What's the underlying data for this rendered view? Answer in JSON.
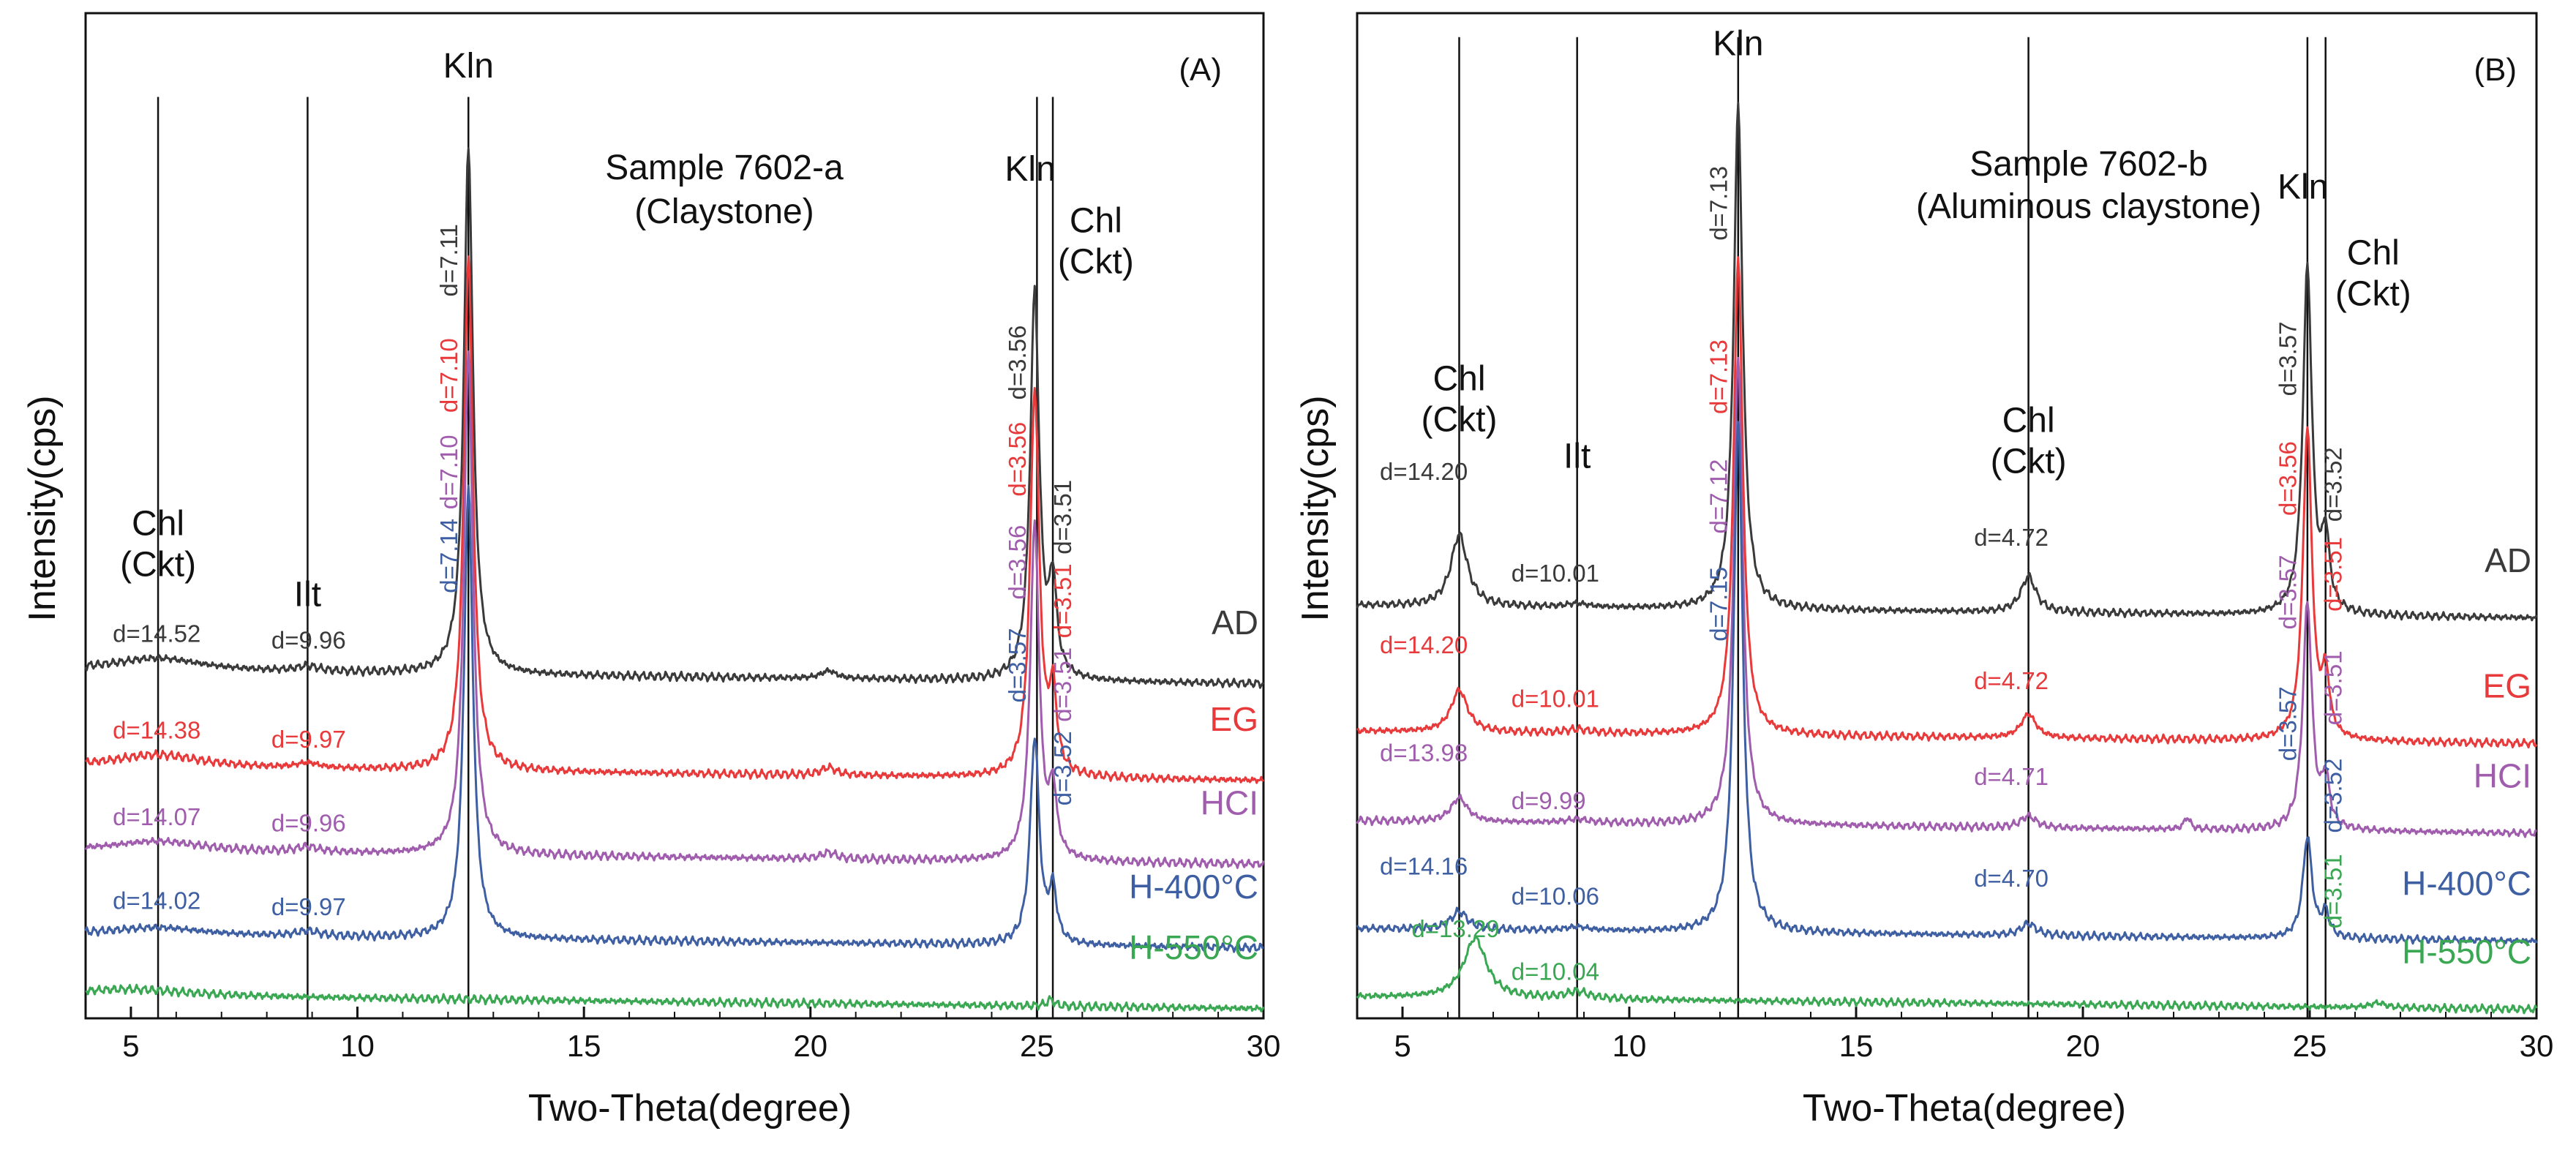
{
  "colors": {
    "AD": "#3a3a3a",
    "EG": "#e8393b",
    "HCl": "#a05dad",
    "H400": "#3f5fa3",
    "H550": "#3aa752"
  },
  "chart_data": [
    {
      "type": "line",
      "panel_label": "(A)",
      "title_line1": "Sample 7602-a",
      "title_line2": "(Claystone)",
      "xlabel": "Two-Theta(degree)",
      "ylabel": "Intensity(cps)",
      "xlim": [
        4,
        30
      ],
      "xticks": [
        5,
        10,
        15,
        20,
        25,
        30
      ],
      "xtick_labels": [
        "5",
        "10",
        "15",
        "20",
        "25",
        "30"
      ],
      "y_ticks_shown": false,
      "series": [
        {
          "name": "AD",
          "color_key": "AD",
          "baseline": 2.7,
          "peaks": [
            {
              "x": 5.6,
              "h": 0.1,
              "w": 1.2
            },
            {
              "x": 8.9,
              "h": 0.04,
              "w": 0.3
            },
            {
              "x": 12.45,
              "h": 4.1,
              "w": 0.12
            },
            {
              "x": 20.4,
              "h": 0.06,
              "w": 0.2
            },
            {
              "x": 24.95,
              "h": 3.0,
              "w": 0.12
            },
            {
              "x": 25.35,
              "h": 0.7,
              "w": 0.1
            }
          ]
        },
        {
          "name": "EG",
          "color_key": "EG",
          "baseline": 1.95,
          "peaks": [
            {
              "x": 5.6,
              "h": 0.1,
              "w": 1.2
            },
            {
              "x": 8.9,
              "h": 0.04,
              "w": 0.3
            },
            {
              "x": 12.45,
              "h": 4.0,
              "w": 0.12
            },
            {
              "x": 20.4,
              "h": 0.06,
              "w": 0.2
            },
            {
              "x": 24.95,
              "h": 3.0,
              "w": 0.12
            },
            {
              "x": 25.35,
              "h": 0.6,
              "w": 0.1
            }
          ]
        },
        {
          "name": "HCl",
          "color_key": "HCl",
          "baseline": 1.3,
          "peaks": [
            {
              "x": 5.6,
              "h": 0.08,
              "w": 1.2
            },
            {
              "x": 8.9,
              "h": 0.04,
              "w": 0.3
            },
            {
              "x": 12.45,
              "h": 3.9,
              "w": 0.12
            },
            {
              "x": 20.4,
              "h": 0.05,
              "w": 0.2
            },
            {
              "x": 24.95,
              "h": 2.6,
              "w": 0.12
            },
            {
              "x": 25.35,
              "h": 0.5,
              "w": 0.1
            }
          ]
        },
        {
          "name": "H-400°C",
          "color_key": "H400",
          "baseline": 0.65,
          "peaks": [
            {
              "x": 5.6,
              "h": 0.06,
              "w": 1.2
            },
            {
              "x": 8.9,
              "h": 0.04,
              "w": 0.3
            },
            {
              "x": 12.45,
              "h": 3.5,
              "w": 0.12
            },
            {
              "x": 24.95,
              "h": 1.6,
              "w": 0.12
            },
            {
              "x": 25.35,
              "h": 0.4,
              "w": 0.1
            }
          ]
        },
        {
          "name": "H-550°C",
          "color_key": "H550",
          "baseline": 0.18,
          "peaks": [
            {
              "x": 5.0,
              "h": 0.05,
              "w": 1.5
            },
            {
              "x": 25.3,
              "h": 0.05,
              "w": 0.1
            }
          ]
        }
      ],
      "series_labels": [
        "AD",
        "EG",
        "HCI",
        "H-400°C",
        "H-550°C"
      ],
      "reference_lines": [
        5.6,
        8.9,
        12.45,
        25.0,
        25.35
      ],
      "mineral_labels": [
        {
          "lines": [
            "Chl",
            "(Ckt)"
          ],
          "x": 5.6,
          "y": 3.75
        },
        {
          "lines": [
            "Ilt"
          ],
          "x": 8.9,
          "y": 3.2
        },
        {
          "lines": [
            "Kln"
          ],
          "x": 12.45,
          "y": 7.3
        },
        {
          "lines": [
            "Kln"
          ],
          "x": 24.85,
          "y": 6.5
        },
        {
          "lines": [
            "Chl",
            "(Ckt)"
          ],
          "x": 26.3,
          "y": 6.1
        }
      ],
      "d_labels": [
        {
          "text": "d=14.52",
          "x": 4.6,
          "y": 2.92,
          "color_key": "AD",
          "vertical": false
        },
        {
          "text": "d=9.96",
          "x": 8.1,
          "y": 2.87,
          "color_key": "AD",
          "vertical": false
        },
        {
          "text": "d=7.11",
          "x": 12.2,
          "y": 5.6,
          "color_key": "AD",
          "vertical": true
        },
        {
          "text": "d=3.56",
          "x": 24.75,
          "y": 4.8,
          "color_key": "AD",
          "vertical": true
        },
        {
          "text": "d=3.51",
          "x": 25.75,
          "y": 3.6,
          "color_key": "AD",
          "vertical": true
        },
        {
          "text": "d=14.38",
          "x": 4.6,
          "y": 2.17,
          "color_key": "EG",
          "vertical": false
        },
        {
          "text": "d=9.97",
          "x": 8.1,
          "y": 2.1,
          "color_key": "EG",
          "vertical": false
        },
        {
          "text": "d=7.10",
          "x": 12.2,
          "y": 4.7,
          "color_key": "EG",
          "vertical": true
        },
        {
          "text": "d=3.56",
          "x": 24.75,
          "y": 4.05,
          "color_key": "EG",
          "vertical": true
        },
        {
          "text": "d=3.51",
          "x": 25.75,
          "y": 2.95,
          "color_key": "EG",
          "vertical": true
        },
        {
          "text": "d=14.07",
          "x": 4.6,
          "y": 1.5,
          "color_key": "HCl",
          "vertical": false
        },
        {
          "text": "d=9.96",
          "x": 8.1,
          "y": 1.45,
          "color_key": "HCl",
          "vertical": false
        },
        {
          "text": "d=7.10",
          "x": 12.2,
          "y": 3.95,
          "color_key": "HCl",
          "vertical": true
        },
        {
          "text": "d=3.56",
          "x": 24.75,
          "y": 3.25,
          "color_key": "HCl",
          "vertical": true
        },
        {
          "text": "d=3.51",
          "x": 25.75,
          "y": 2.3,
          "color_key": "HCl",
          "vertical": true
        },
        {
          "text": "d=14.02",
          "x": 4.6,
          "y": 0.85,
          "color_key": "H400",
          "vertical": false
        },
        {
          "text": "d=9.97",
          "x": 8.1,
          "y": 0.8,
          "color_key": "H400",
          "vertical": false
        },
        {
          "text": "d=7.14",
          "x": 12.2,
          "y": 3.3,
          "color_key": "H400",
          "vertical": true
        },
        {
          "text": "d=3.57",
          "x": 24.75,
          "y": 2.45,
          "color_key": "H400",
          "vertical": true
        },
        {
          "text": "d=3.52",
          "x": 25.75,
          "y": 1.65,
          "color_key": "H400",
          "vertical": true
        }
      ]
    },
    {
      "type": "line",
      "panel_label": "(B)",
      "title_line1": "Sample 7602-b",
      "title_line2": "(Aluminous claystone)",
      "xlabel": "Two-Theta(degree)",
      "ylabel": "Intensity(cps)",
      "xlim": [
        4,
        30
      ],
      "xticks": [
        5,
        10,
        15,
        20,
        25,
        30
      ],
      "xtick_labels": [
        "5",
        "10",
        "15",
        "20",
        "25",
        "30"
      ],
      "y_ticks_shown": false,
      "series": [
        {
          "name": "AD",
          "color_key": "AD",
          "baseline": 3.45,
          "peaks": [
            {
              "x": 6.25,
              "h": 0.6,
              "w": 0.22
            },
            {
              "x": 8.85,
              "h": 0.03,
              "w": 0.3
            },
            {
              "x": 12.4,
              "h": 4.2,
              "w": 0.12
            },
            {
              "x": 18.8,
              "h": 0.3,
              "w": 0.2
            },
            {
              "x": 24.95,
              "h": 2.9,
              "w": 0.12
            },
            {
              "x": 25.35,
              "h": 0.6,
              "w": 0.1
            }
          ]
        },
        {
          "name": "EG",
          "color_key": "EG",
          "baseline": 2.4,
          "peaks": [
            {
              "x": 6.25,
              "h": 0.35,
              "w": 0.22
            },
            {
              "x": 8.85,
              "h": 0.03,
              "w": 0.3
            },
            {
              "x": 12.4,
              "h": 4.0,
              "w": 0.12
            },
            {
              "x": 18.8,
              "h": 0.2,
              "w": 0.2
            },
            {
              "x": 24.95,
              "h": 2.6,
              "w": 0.12
            },
            {
              "x": 25.35,
              "h": 0.5,
              "w": 0.1
            }
          ]
        },
        {
          "name": "HCl",
          "color_key": "HCl",
          "baseline": 1.65,
          "peaks": [
            {
              "x": 6.25,
              "h": 0.2,
              "w": 0.22
            },
            {
              "x": 8.85,
              "h": 0.03,
              "w": 0.3
            },
            {
              "x": 12.4,
              "h": 3.9,
              "w": 0.12
            },
            {
              "x": 18.8,
              "h": 0.1,
              "w": 0.2
            },
            {
              "x": 22.3,
              "h": 0.1,
              "w": 0.08
            },
            {
              "x": 24.95,
              "h": 1.9,
              "w": 0.12
            },
            {
              "x": 25.35,
              "h": 0.4,
              "w": 0.1
            }
          ]
        },
        {
          "name": "H-400°C",
          "color_key": "H400",
          "baseline": 0.75,
          "peaks": [
            {
              "x": 6.25,
              "h": 0.15,
              "w": 0.22
            },
            {
              "x": 8.85,
              "h": 0.03,
              "w": 0.3
            },
            {
              "x": 12.4,
              "h": 4.3,
              "w": 0.12
            },
            {
              "x": 18.8,
              "h": 0.1,
              "w": 0.2
            },
            {
              "x": 24.95,
              "h": 0.85,
              "w": 0.12
            },
            {
              "x": 25.35,
              "h": 0.2,
              "w": 0.1
            }
          ]
        },
        {
          "name": "H-550°C",
          "color_key": "H550",
          "baseline": 0.18,
          "peaks": [
            {
              "x": 6.6,
              "h": 0.5,
              "w": 0.3
            },
            {
              "x": 8.85,
              "h": 0.06,
              "w": 0.3
            },
            {
              "x": 26.5,
              "h": 0.04,
              "w": 0.2
            }
          ]
        }
      ],
      "series_labels": [
        "AD",
        "EG",
        "HCI",
        "H-400°C",
        "H-550°C"
      ],
      "reference_lines": [
        6.25,
        8.85,
        12.4,
        18.8,
        24.95,
        25.35
      ],
      "mineral_labels": [
        {
          "lines": [
            "Chl",
            "(Ckt)"
          ],
          "x": 6.25,
          "y": 5.25
        },
        {
          "lines": [
            "Ilt"
          ],
          "x": 8.85,
          "y": 4.6
        },
        {
          "lines": [
            "Kln"
          ],
          "x": 12.4,
          "y": 8.05
        },
        {
          "lines": [
            "Chl",
            "(Ckt)"
          ],
          "x": 18.8,
          "y": 4.9
        },
        {
          "lines": [
            "Kln"
          ],
          "x": 24.85,
          "y": 6.85
        },
        {
          "lines": [
            "Chl",
            "(Ckt)"
          ],
          "x": 26.4,
          "y": 6.3
        }
      ],
      "d_labels": [
        {
          "text": "d=14.20",
          "x": 4.5,
          "y": 4.5,
          "color_key": "AD",
          "vertical": false
        },
        {
          "text": "d=10.01",
          "x": 7.4,
          "y": 3.65,
          "color_key": "AD",
          "vertical": false
        },
        {
          "text": "d=7.13",
          "x": 12.15,
          "y": 6.5,
          "color_key": "AD",
          "vertical": true
        },
        {
          "text": "d=4.72",
          "x": 17.6,
          "y": 3.95,
          "color_key": "AD",
          "vertical": false
        },
        {
          "text": "d=3.57",
          "x": 24.7,
          "y": 5.2,
          "color_key": "AD",
          "vertical": true
        },
        {
          "text": "d=3.52",
          "x": 25.7,
          "y": 4.15,
          "color_key": "AD",
          "vertical": true
        },
        {
          "text": "d=14.20",
          "x": 4.5,
          "y": 3.05,
          "color_key": "EG",
          "vertical": false
        },
        {
          "text": "d=10.01",
          "x": 7.4,
          "y": 2.6,
          "color_key": "EG",
          "vertical": false
        },
        {
          "text": "d=7.13",
          "x": 12.15,
          "y": 5.05,
          "color_key": "EG",
          "vertical": true
        },
        {
          "text": "d=4.72",
          "x": 17.6,
          "y": 2.75,
          "color_key": "EG",
          "vertical": false
        },
        {
          "text": "d=3.56",
          "x": 24.7,
          "y": 4.2,
          "color_key": "EG",
          "vertical": true
        },
        {
          "text": "d=3.51",
          "x": 25.7,
          "y": 3.4,
          "color_key": "EG",
          "vertical": true
        },
        {
          "text": "d=13.98",
          "x": 4.5,
          "y": 2.15,
          "color_key": "HCl",
          "vertical": false
        },
        {
          "text": "d=9.99",
          "x": 7.4,
          "y": 1.75,
          "color_key": "HCl",
          "vertical": false
        },
        {
          "text": "d=7.12",
          "x": 12.15,
          "y": 4.05,
          "color_key": "HCl",
          "vertical": true
        },
        {
          "text": "d=4.71",
          "x": 17.6,
          "y": 1.95,
          "color_key": "HCl",
          "vertical": false
        },
        {
          "text": "d=3.57",
          "x": 24.7,
          "y": 3.25,
          "color_key": "HCl",
          "vertical": true
        },
        {
          "text": "d=3.51",
          "x": 25.7,
          "y": 2.45,
          "color_key": "HCl",
          "vertical": true
        },
        {
          "text": "d=14.16",
          "x": 4.5,
          "y": 1.2,
          "color_key": "H400",
          "vertical": false
        },
        {
          "text": "d=10.06",
          "x": 7.4,
          "y": 0.95,
          "color_key": "H400",
          "vertical": false
        },
        {
          "text": "d=7.15",
          "x": 12.15,
          "y": 3.15,
          "color_key": "H400",
          "vertical": true
        },
        {
          "text": "d=4.70",
          "x": 17.6,
          "y": 1.1,
          "color_key": "H400",
          "vertical": false
        },
        {
          "text": "d=3.57",
          "x": 24.7,
          "y": 2.15,
          "color_key": "H400",
          "vertical": true
        },
        {
          "text": "d=3.52",
          "x": 25.7,
          "y": 1.55,
          "color_key": "H400",
          "vertical": true
        },
        {
          "text": "d=13.29",
          "x": 5.2,
          "y": 0.68,
          "color_key": "H550",
          "vertical": false
        },
        {
          "text": "d=10.04",
          "x": 7.4,
          "y": 0.32,
          "color_key": "H550",
          "vertical": false
        },
        {
          "text": "d=3.51",
          "x": 25.7,
          "y": 0.75,
          "color_key": "H550",
          "vertical": true
        }
      ]
    }
  ]
}
